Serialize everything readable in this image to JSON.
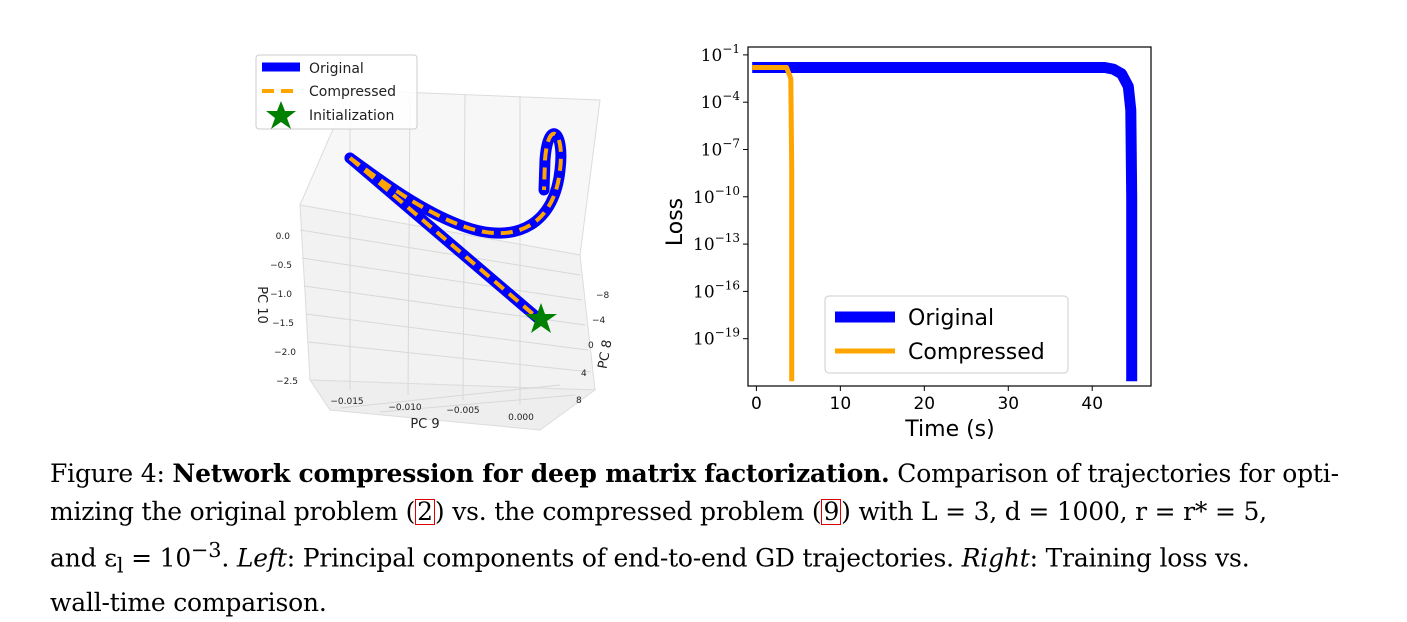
{
  "figure": {
    "left_panel": {
      "type": "3d-line",
      "legend": [
        {
          "label": "Original",
          "color": "#0000ff",
          "style": "solid"
        },
        {
          "label": "Compressed",
          "color": "#ffa500",
          "style": "dashed"
        },
        {
          "label": "Initialization",
          "color": "#008000",
          "marker": "star"
        }
      ],
      "axes": {
        "x": {
          "label": "PC 9",
          "ticks": [
            "−0.015",
            "−0.010",
            "−0.005",
            "0.000"
          ]
        },
        "y": {
          "label": "PC 8",
          "ticks": [
            "−8",
            "−4",
            "0",
            "4",
            "8"
          ]
        },
        "z": {
          "label": "PC 10",
          "ticks": [
            "0.0",
            "−0.5",
            "−1.0",
            "−1.5",
            "−2.0",
            "−2.5"
          ]
        }
      }
    },
    "right_panel": {
      "chart_data": {
        "type": "line",
        "xlabel": "Time (s)",
        "ylabel": "Loss",
        "yscale": "log",
        "xlim": [
          -1,
          47
        ],
        "ylim_exponent": [
          -22,
          -0.5
        ],
        "x_ticks": [
          "0",
          "10",
          "20",
          "30",
          "40"
        ],
        "y_tick_base": "10",
        "y_ticks": [
          {
            "exp": -1,
            "label": "−1"
          },
          {
            "exp": -4,
            "label": "−4"
          },
          {
            "exp": -7,
            "label": "−7"
          },
          {
            "exp": -10,
            "label": "−10"
          },
          {
            "exp": -13,
            "label": "−13"
          },
          {
            "exp": -16,
            "label": "−16"
          },
          {
            "exp": -19,
            "label": "−19"
          }
        ],
        "legend_position": "lower-center",
        "series": [
          {
            "name": "Original",
            "color": "#0000ff",
            "points": [
              [
                -0.5,
                -1.8
              ],
              [
                41.5,
                -1.8
              ],
              [
                42.5,
                -1.9
              ],
              [
                43.5,
                -2.2
              ],
              [
                44.3,
                -3.0
              ],
              [
                44.6,
                -4.5
              ],
              [
                44.7,
                -10
              ],
              [
                44.7,
                -21.7
              ]
            ]
          },
          {
            "name": "Compressed",
            "color": "#ffa500",
            "points": [
              [
                -0.5,
                -1.8
              ],
              [
                3.6,
                -1.8
              ],
              [
                4.1,
                -2.5
              ],
              [
                4.2,
                -8
              ],
              [
                4.2,
                -21.7
              ]
            ]
          }
        ]
      }
    }
  },
  "caption": {
    "prefix": "Figure 4: ",
    "title": "Network compression for deep matrix factorization.",
    "line1_rest": " Comparison of trajectories for opti-",
    "line2_a": "mizing the original problem (",
    "ref1": "2",
    "line2_b": ") vs. the compressed problem (",
    "ref2": "9",
    "line2_c": ") with L = 3, d = 1000, r = r* = 5,",
    "line3_a": "and ε",
    "line3_sub": "l",
    "line3_b": " = 10",
    "line3_sup": "−3",
    "line3_c": ". ",
    "left_label": "Left",
    "line3_d": ": Principal components of end-to-end GD trajectories. ",
    "right_label": "Right",
    "line3_e": ": Training loss vs.",
    "line4": "wall-time comparison."
  }
}
